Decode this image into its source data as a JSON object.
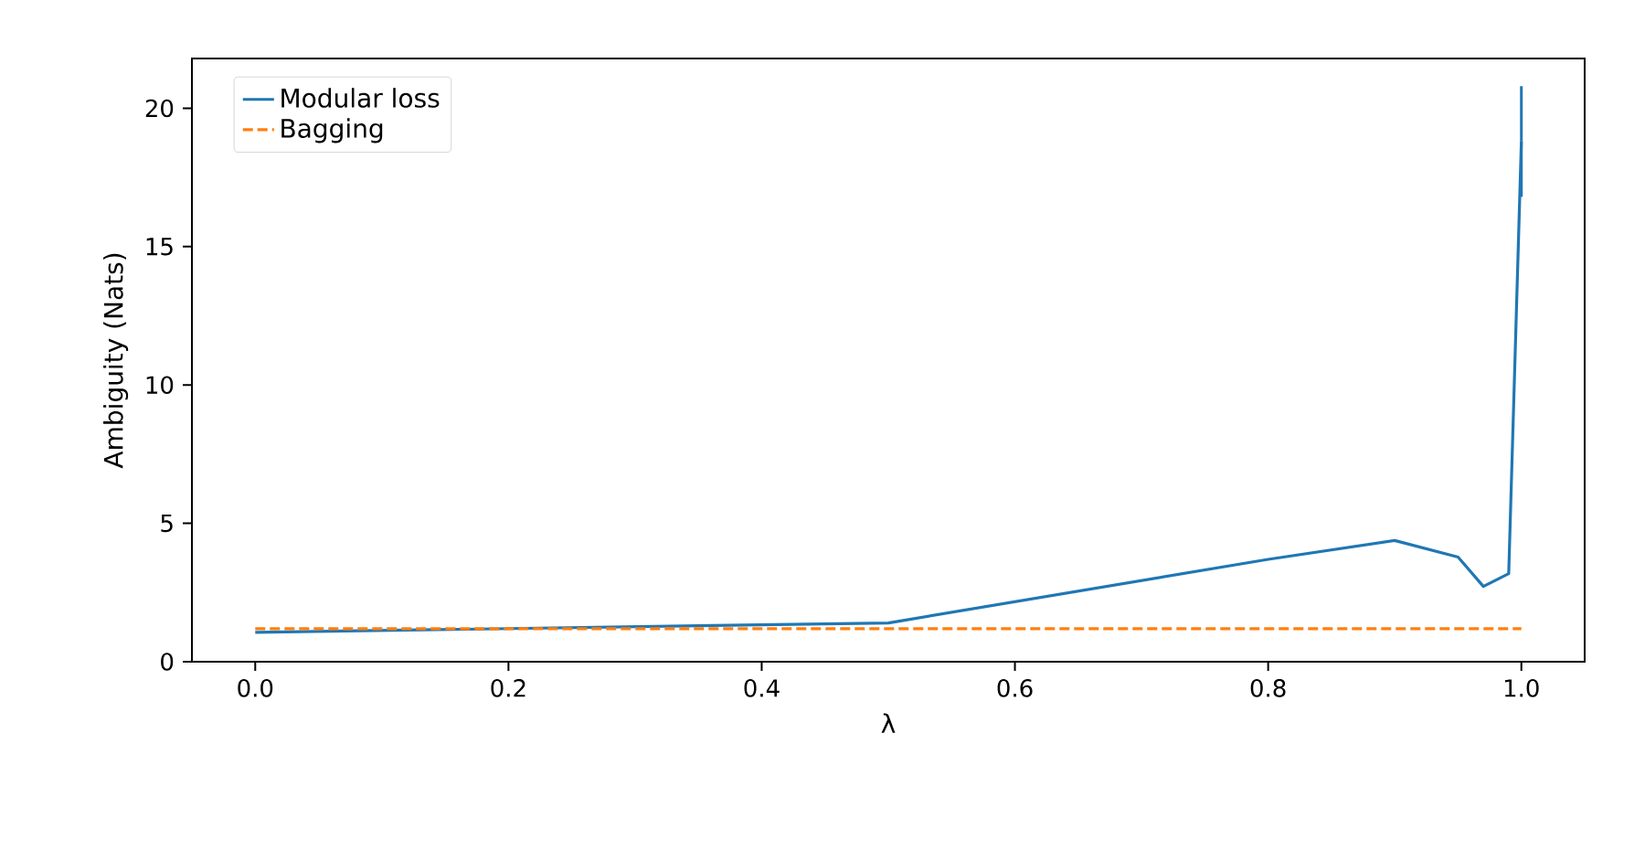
{
  "chart_data": {
    "type": "line",
    "xlabel": "λ",
    "ylabel": "Ambiguity (Nats)",
    "xlim": [
      -0.05,
      1.05
    ],
    "ylim": [
      0,
      21.8
    ],
    "xticks": [
      {
        "value": 0,
        "label": "0.0"
      },
      {
        "value": 0.2,
        "label": "0.2"
      },
      {
        "value": 0.4,
        "label": "0.4"
      },
      {
        "value": 0.6,
        "label": "0.6"
      },
      {
        "value": 0.8,
        "label": "0.8"
      },
      {
        "value": 1,
        "label": "1.0"
      }
    ],
    "yticks": [
      0,
      5,
      10,
      15,
      20
    ],
    "legend": "top left",
    "grid": false,
    "series": [
      {
        "name": "Modular loss",
        "color": "#1f77b4",
        "line_style": "solid",
        "x": [
          0,
          0.5,
          0.8,
          0.9,
          0.95,
          0.97,
          0.99,
          1.0
        ],
        "values": [
          1.06,
          1.4,
          3.7,
          4.38,
          3.78,
          2.72,
          3.18,
          18.8
        ],
        "errors": [
          null,
          null,
          null,
          null,
          null,
          null,
          null,
          2.0
        ]
      },
      {
        "name": "Bagging",
        "color": "#ff7f0e",
        "line_style": "dashed",
        "x": [
          0,
          1.0
        ],
        "values": [
          1.19,
          1.19
        ]
      }
    ]
  }
}
